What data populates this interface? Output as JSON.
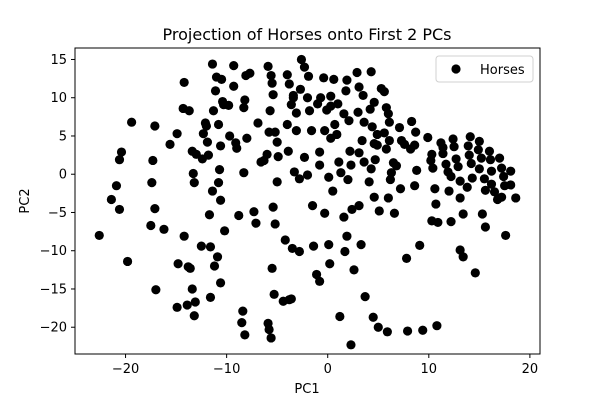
{
  "chart_data": {
    "type": "scatter",
    "title": "Projection of Horses onto First 2 PCs",
    "xlabel": "PC1",
    "ylabel": "PC2",
    "xlim": [
      -25,
      21
    ],
    "ylim": [
      -23.5,
      16.5
    ],
    "xticks": [
      -20,
      -10,
      0,
      10,
      20
    ],
    "yticks": [
      -20,
      -15,
      -10,
      -5,
      0,
      5,
      10,
      15
    ],
    "grid": false,
    "legend": {
      "label": "Horses",
      "position": "top-right"
    },
    "series": [
      {
        "name": "Horses",
        "color": "#000000",
        "points": [
          [
            -22.6,
            -8.0
          ],
          [
            -21.4,
            -3.3
          ],
          [
            -20.6,
            -4.6
          ],
          [
            -20.4,
            2.9
          ],
          [
            -20.6,
            1.9
          ],
          [
            -20.9,
            -1.5
          ],
          [
            -19.8,
            -11.4
          ],
          [
            -19.4,
            6.8
          ],
          [
            -17.1,
            6.3
          ],
          [
            -17.3,
            1.8
          ],
          [
            -17.4,
            -1.1
          ],
          [
            -17.1,
            -4.5
          ],
          [
            -17.5,
            -6.7
          ],
          [
            -17.0,
            -15.1
          ],
          [
            -16.2,
            -7.2
          ],
          [
            -15.6,
            3.9
          ],
          [
            -14.9,
            5.3
          ],
          [
            -14.2,
            12.0
          ],
          [
            -14.3,
            8.6
          ],
          [
            -13.7,
            8.3
          ],
          [
            -13.4,
            3.0
          ],
          [
            -13.3,
            0.1
          ],
          [
            -13.0,
            2.6
          ],
          [
            -13.2,
            -1.1
          ],
          [
            -14.2,
            -8.1
          ],
          [
            -14.8,
            -11.7
          ],
          [
            -14.9,
            -17.4
          ],
          [
            -13.9,
            -17.1
          ],
          [
            -13.8,
            -12.1
          ],
          [
            -13.6,
            -12.3
          ],
          [
            -13.4,
            -15.0
          ],
          [
            -13.2,
            -18.5
          ],
          [
            -13.1,
            -16.7
          ],
          [
            -12.5,
            -9.4
          ],
          [
            -12.4,
            2.0
          ],
          [
            -12.3,
            5.3
          ],
          [
            -12.1,
            6.7
          ],
          [
            -12.0,
            6.3
          ],
          [
            -11.9,
            4.2
          ],
          [
            -11.8,
            2.5
          ],
          [
            -11.7,
            -5.3
          ],
          [
            -11.4,
            -2.2
          ],
          [
            -11.2,
            -12.0
          ],
          [
            -11.6,
            -16.1
          ],
          [
            -11.6,
            -9.5
          ],
          [
            -11.4,
            14.4
          ],
          [
            -11.3,
            8.3
          ],
          [
            -11.1,
            10.9
          ],
          [
            -11.0,
            12.7
          ],
          [
            -10.8,
            6.5
          ],
          [
            -10.5,
            12.4
          ],
          [
            -10.4,
            9.5
          ],
          [
            -10.3,
            9.1
          ],
          [
            -10.6,
            3.7
          ],
          [
            -10.7,
            0.6
          ],
          [
            -10.8,
            -1.1
          ],
          [
            -10.6,
            -3.4
          ],
          [
            -10.2,
            -7.4
          ],
          [
            -10.9,
            -10.8
          ],
          [
            -10.6,
            -14.2
          ],
          [
            -9.7,
            5.0
          ],
          [
            -9.8,
            9.0
          ],
          [
            -9.3,
            14.2
          ],
          [
            -9.3,
            11.5
          ],
          [
            -9.1,
            4.1
          ],
          [
            -9.0,
            3.4
          ],
          [
            -8.8,
            -5.4
          ],
          [
            -8.5,
            -19.4
          ],
          [
            -8.2,
            -21.0
          ],
          [
            -8.4,
            -17.9
          ],
          [
            -8.3,
            0.2
          ],
          [
            -8.0,
            4.7
          ],
          [
            -8.3,
            8.7
          ],
          [
            -8.2,
            9.7
          ],
          [
            -8.1,
            12.9
          ],
          [
            -7.7,
            13.2
          ],
          [
            -7.3,
            -4.9
          ],
          [
            -7.1,
            -6.4
          ],
          [
            -6.9,
            6.7
          ],
          [
            -6.6,
            1.6
          ],
          [
            -6.3,
            1.8
          ],
          [
            -6.0,
            2.6
          ],
          [
            -5.8,
            5.5
          ],
          [
            -5.6,
            12.9
          ],
          [
            -5.5,
            11.9
          ],
          [
            -5.4,
            10.4
          ],
          [
            -5.9,
            14.1
          ],
          [
            -5.7,
            8.3
          ],
          [
            -5.2,
            5.5
          ],
          [
            -5.0,
            4.2
          ],
          [
            -4.9,
            2.3
          ],
          [
            -5.0,
            -1.0
          ],
          [
            -5.4,
            -4.3
          ],
          [
            -5.2,
            -6.5
          ],
          [
            -5.5,
            -12.3
          ],
          [
            -5.3,
            -15.7
          ],
          [
            -5.9,
            -19.5
          ],
          [
            -5.8,
            -20.3
          ],
          [
            -5.6,
            -21.4
          ],
          [
            -4.4,
            -16.6
          ],
          [
            -3.8,
            -16.4
          ],
          [
            -3.6,
            -16.3
          ],
          [
            -4.0,
            13.0
          ],
          [
            -3.8,
            11.8
          ],
          [
            -3.4,
            10.0
          ],
          [
            -3.6,
            9.1
          ],
          [
            -3.4,
            10.3
          ],
          [
            -3.1,
            8.0
          ],
          [
            -4.0,
            6.5
          ],
          [
            -3.1,
            5.7
          ],
          [
            -3.9,
            3.0
          ],
          [
            -3.3,
            0.3
          ],
          [
            -2.8,
            -0.6
          ],
          [
            -4.2,
            -8.6
          ],
          [
            -3.5,
            -9.7
          ],
          [
            -2.8,
            -10.1
          ],
          [
            -2.6,
            15.0
          ],
          [
            -2.3,
            14.0
          ],
          [
            -1.9,
            12.8
          ],
          [
            -2.7,
            11.1
          ],
          [
            -2.0,
            10.0
          ],
          [
            -1.8,
            8.3
          ],
          [
            -1.6,
            5.7
          ],
          [
            -2.3,
            2.2
          ],
          [
            -2.0,
            -0.1
          ],
          [
            -1.5,
            -4.1
          ],
          [
            -1.4,
            -9.4
          ],
          [
            -1.1,
            -13.1
          ],
          [
            -0.8,
            -14.0
          ],
          [
            -0.4,
            12.6
          ],
          [
            -0.7,
            10.0
          ],
          [
            -1.0,
            9.2
          ],
          [
            -0.1,
            8.4
          ],
          [
            0.3,
            10.2
          ],
          [
            0.3,
            8.9
          ],
          [
            -0.3,
            5.7
          ],
          [
            0.3,
            4.7
          ],
          [
            -0.8,
            2.9
          ],
          [
            -0.8,
            1.2
          ],
          [
            0.1,
            -0.4
          ],
          [
            0.5,
            -2.2
          ],
          [
            -0.3,
            -5.1
          ],
          [
            0.1,
            -9.2
          ],
          [
            0.2,
            -11.7
          ],
          [
            0.6,
            12.4
          ],
          [
            1.0,
            9.2
          ],
          [
            0.7,
            6.5
          ],
          [
            0.9,
            5.2
          ],
          [
            1.1,
            1.6
          ],
          [
            1.3,
            0.2
          ],
          [
            1.6,
            -5.6
          ],
          [
            1.9,
            -8.1
          ],
          [
            1.7,
            -10.1
          ],
          [
            1.2,
            -18.6
          ],
          [
            1.9,
            12.3
          ],
          [
            1.8,
            10.9
          ],
          [
            1.6,
            7.9
          ],
          [
            2.1,
            7.0
          ],
          [
            2.2,
            3.0
          ],
          [
            2.3,
            1.2
          ],
          [
            2.0,
            -0.7
          ],
          [
            2.4,
            -4.6
          ],
          [
            2.6,
            -12.5
          ],
          [
            2.3,
            -22.3
          ],
          [
            2.9,
            13.3
          ],
          [
            3.1,
            11.4
          ],
          [
            3.5,
            10.3
          ],
          [
            3.0,
            8.1
          ],
          [
            3.6,
            6.8
          ],
          [
            3.4,
            4.4
          ],
          [
            3.1,
            2.8
          ],
          [
            3.6,
            1.6
          ],
          [
            3.1,
            -4.1
          ],
          [
            3.3,
            -9.2
          ],
          [
            3.7,
            -16.0
          ],
          [
            4.3,
            13.4
          ],
          [
            4.6,
            9.4
          ],
          [
            4.2,
            8.5
          ],
          [
            4.4,
            6.2
          ],
          [
            4.9,
            5.2
          ],
          [
            4.6,
            4.0
          ],
          [
            4.9,
            3.8
          ],
          [
            4.7,
            1.9
          ],
          [
            4.3,
            0.7
          ],
          [
            4.1,
            -1.0
          ],
          [
            4.6,
            -3.0
          ],
          [
            5.1,
            -4.8
          ],
          [
            4.5,
            -18.7
          ],
          [
            5.0,
            -20.0
          ],
          [
            5.3,
            11.2
          ],
          [
            5.6,
            10.8
          ],
          [
            5.8,
            8.7
          ],
          [
            6.0,
            7.9
          ],
          [
            6.1,
            6.8
          ],
          [
            5.6,
            5.4
          ],
          [
            6.1,
            4.4
          ],
          [
            5.8,
            3.3
          ],
          [
            6.5,
            1.5
          ],
          [
            6.8,
            1.1
          ],
          [
            6.3,
            0.2
          ],
          [
            6.2,
            -0.7
          ],
          [
            6.0,
            -3.1
          ],
          [
            6.6,
            -5.1
          ],
          [
            5.9,
            -20.6
          ],
          [
            7.1,
            6.1
          ],
          [
            7.3,
            4.4
          ],
          [
            7.6,
            3.9
          ],
          [
            7.2,
            -1.9
          ],
          [
            7.8,
            -11.0
          ],
          [
            7.9,
            -20.5
          ],
          [
            8.3,
            6.9
          ],
          [
            8.7,
            5.5
          ],
          [
            8.6,
            3.8
          ],
          [
            8.2,
            3.3
          ],
          [
            8.8,
            0.5
          ],
          [
            8.6,
            -1.5
          ],
          [
            9.1,
            -9.3
          ],
          [
            9.4,
            -20.4
          ],
          [
            9.9,
            4.8
          ],
          [
            10.3,
            2.6
          ],
          [
            10.2,
            1.8
          ],
          [
            10.4,
            0.8
          ],
          [
            10.6,
            -1.9
          ],
          [
            10.7,
            -3.9
          ],
          [
            10.3,
            -6.1
          ],
          [
            10.9,
            -6.3
          ],
          [
            10.8,
            -19.8
          ],
          [
            11.2,
            4.1
          ],
          [
            11.4,
            3.5
          ],
          [
            11.4,
            2.7
          ],
          [
            11.7,
            1.3
          ],
          [
            11.9,
            0.3
          ],
          [
            12.2,
            -0.3
          ],
          [
            12.0,
            -2.2
          ],
          [
            12.2,
            -6.2
          ],
          [
            12.4,
            4.6
          ],
          [
            12.5,
            3.6
          ],
          [
            12.7,
            2.0
          ],
          [
            12.9,
            1.0
          ],
          [
            13.1,
            -0.9
          ],
          [
            13.1,
            -3.1
          ],
          [
            13.4,
            -5.2
          ],
          [
            13.1,
            -9.9
          ],
          [
            13.4,
            -10.8
          ],
          [
            14.1,
            4.9
          ],
          [
            13.9,
            3.7
          ],
          [
            14.0,
            2.5
          ],
          [
            14.2,
            1.4
          ],
          [
            14.3,
            -0.5
          ],
          [
            13.8,
            -1.7
          ],
          [
            14.6,
            -12.9
          ],
          [
            15.0,
            4.3
          ],
          [
            14.9,
            3.2
          ],
          [
            15.2,
            2.1
          ],
          [
            15.0,
            0.7
          ],
          [
            15.5,
            -0.6
          ],
          [
            15.6,
            -2.1
          ],
          [
            15.3,
            -5.2
          ],
          [
            15.6,
            -6.9
          ],
          [
            16.0,
            3.0
          ],
          [
            16.1,
            1.9
          ],
          [
            16.2,
            0.4
          ],
          [
            16.2,
            -1.3
          ],
          [
            16.5,
            -2.3
          ],
          [
            16.8,
            -3.3
          ],
          [
            17.0,
            2.1
          ],
          [
            17.2,
            0.8
          ],
          [
            17.4,
            -0.3
          ],
          [
            17.5,
            -1.5
          ],
          [
            17.2,
            -3.0
          ],
          [
            17.6,
            -8.0
          ],
          [
            18.1,
            -1.4
          ],
          [
            18.1,
            0.4
          ],
          [
            18.6,
            -3.1
          ]
        ]
      }
    ]
  }
}
